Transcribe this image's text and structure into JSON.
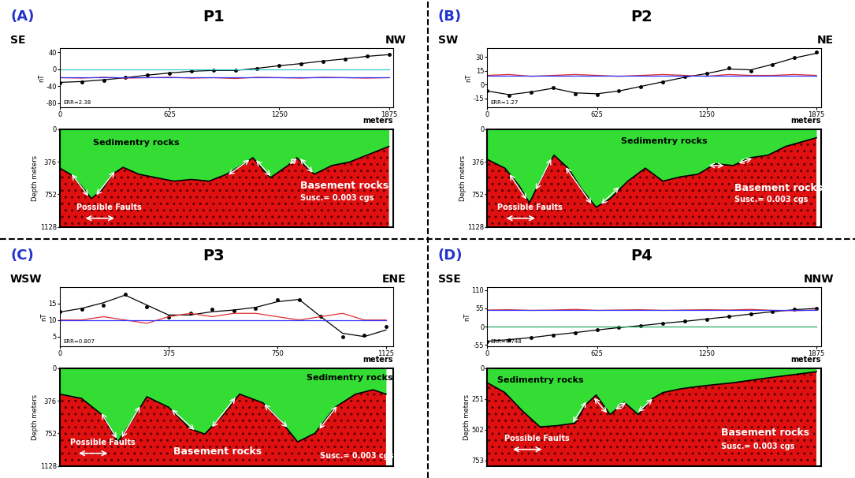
{
  "chart_data": [
    {
      "type": "line",
      "panel_label": "(A)",
      "title": "P1",
      "annotations": [
        "SE",
        "NW"
      ],
      "ylabel": "nT",
      "xlabel": "meters",
      "error_text": "ERR=2.38",
      "x": [
        0,
        125,
        250,
        375,
        500,
        625,
        750,
        875,
        1000,
        1125,
        1250,
        1375,
        1500,
        1625,
        1750,
        1875
      ],
      "xlim": [
        0,
        1900
      ],
      "xticks": [
        0,
        625,
        1250,
        1875
      ],
      "ylim": [
        -90,
        50
      ],
      "yticks": [
        -80,
        -40,
        0,
        40
      ],
      "series": [
        {
          "color": "#000000",
          "marker": "circle",
          "line_style": "none",
          "values": [
            -32,
            -30,
            -26,
            -20,
            -14,
            -9,
            -4,
            -2,
            -3,
            2,
            8,
            13,
            18,
            24,
            30,
            35
          ]
        },
        {
          "color": "#000000",
          "marker": "none",
          "line_style": "solid",
          "values": [
            -31,
            -29,
            -25,
            -20,
            -14,
            -9,
            -5,
            -3,
            -3,
            2,
            8,
            13,
            19,
            24,
            30,
            34
          ]
        },
        {
          "color": "#e03030",
          "marker": "none",
          "line_style": "solid",
          "values": [
            -20,
            -21,
            -19,
            -21,
            -20,
            -19,
            -21,
            -20,
            -22,
            -19,
            -20,
            -21,
            -19,
            -20,
            -21,
            -20
          ]
        },
        {
          "color": "#3333ff",
          "marker": "none",
          "line_style": "solid",
          "values": [
            -20,
            -20,
            -20,
            -20,
            -20,
            -20,
            -20,
            -20,
            -20,
            -20,
            -20,
            -20,
            -20,
            -20,
            -20,
            -20
          ]
        },
        {
          "color": "#33cccc",
          "marker": "none",
          "line_style": "solid",
          "values": [
            0,
            0,
            0,
            0,
            0,
            0,
            0,
            0,
            0,
            0,
            0,
            0,
            0,
            0,
            0,
            0
          ]
        }
      ],
      "section": {
        "type": "area",
        "ylabel": "Depth meters",
        "tick_labels": "y",
        "x": [
          0,
          60,
          120,
          180,
          240,
          300,
          360,
          450,
          550,
          650,
          750,
          850,
          950,
          1050,
          1100,
          1150,
          1200,
          1300,
          1350,
          1400,
          1450,
          1550,
          1650,
          1750,
          1875
        ],
        "values": [
          450,
          520,
          650,
          800,
          700,
          520,
          440,
          520,
          560,
          600,
          580,
          600,
          520,
          400,
          330,
          450,
          560,
          420,
          330,
          430,
          520,
          420,
          380,
          300,
          200
        ],
        "ylim": [
          1128,
          0
        ],
        "yticks": [
          0,
          376,
          752,
          1128
        ],
        "faults": [
          [
            60,
            500,
            170,
            790
          ],
          [
            200,
            780,
            320,
            470
          ],
          [
            950,
            540,
            1090,
            340
          ],
          [
            1110,
            340,
            1210,
            560
          ],
          [
            1300,
            420,
            1360,
            320
          ],
          [
            1360,
            320,
            1450,
            520
          ]
        ],
        "sediment_label": "Sedimentry rocks",
        "basement_label": "Basement rocks",
        "susceptibility": "Susc.= 0.003 cgs",
        "fault_label": "Possible Faults"
      }
    },
    {
      "type": "line",
      "panel_label": "(B)",
      "title": "P2",
      "annotations": [
        "SW",
        "NE"
      ],
      "ylabel": "nT",
      "xlabel": "meters",
      "error_text": "ERR=1.27",
      "x": [
        0,
        125,
        250,
        375,
        500,
        625,
        750,
        875,
        1000,
        1125,
        1250,
        1375,
        1500,
        1625,
        1750,
        1875
      ],
      "xlim": [
        0,
        1900
      ],
      "xticks": [
        0,
        625,
        1250,
        1875
      ],
      "ylim": [
        -25,
        40
      ],
      "yticks": [
        -15,
        0,
        15,
        30
      ],
      "series": [
        {
          "color": "#000000",
          "marker": "circle",
          "line_style": "none",
          "values": [
            -7,
            -12,
            -8,
            -3,
            -10,
            -11,
            -7,
            -2,
            3,
            9,
            12,
            18,
            15,
            22,
            29,
            35
          ]
        },
        {
          "color": "#000000",
          "marker": "none",
          "line_style": "solid",
          "values": [
            -7,
            -11,
            -8,
            -4,
            -9,
            -10,
            -7,
            -2,
            3,
            8,
            12,
            17,
            16,
            22,
            29,
            34
          ]
        },
        {
          "color": "#e03030",
          "marker": "none",
          "line_style": "solid",
          "values": [
            10,
            11,
            9,
            10,
            11,
            10,
            9,
            10,
            11,
            10,
            9,
            11,
            10,
            10,
            11,
            10
          ]
        },
        {
          "color": "#3333ff",
          "marker": "none",
          "line_style": "solid",
          "values": [
            10,
            10,
            10,
            10,
            10,
            10,
            10,
            10,
            10,
            10,
            10,
            10,
            10,
            10,
            10,
            10
          ]
        }
      ],
      "section": {
        "type": "area",
        "ylabel": "Depth meters",
        "tick_labels": "y",
        "x": [
          0,
          100,
          180,
          240,
          300,
          380,
          460,
          540,
          620,
          700,
          800,
          900,
          1000,
          1100,
          1200,
          1300,
          1400,
          1500,
          1600,
          1700,
          1875
        ],
        "values": [
          350,
          450,
          650,
          850,
          600,
          300,
          450,
          700,
          900,
          800,
          600,
          450,
          600,
          550,
          520,
          400,
          420,
          330,
          300,
          200,
          100
        ],
        "ylim": [
          1128,
          0
        ],
        "yticks": [
          0,
          376,
          752,
          1128
        ],
        "faults": [
          [
            120,
            500,
            230,
            830
          ],
          [
            270,
            720,
            370,
            320
          ],
          [
            440,
            420,
            600,
            880
          ],
          [
            640,
            880,
            760,
            650
          ],
          [
            1250,
            420,
            1360,
            420
          ],
          [
            1420,
            400,
            1520,
            330
          ]
        ],
        "sediment_label": "Sedimentry rocks",
        "basement_label": "Basement rocks",
        "susceptibility": "Susc.= 0.003 cgs",
        "fault_label": "Possible Faults"
      }
    },
    {
      "type": "line",
      "panel_label": "(C)",
      "title": "P3",
      "annotations": [
        "WSW",
        "ENE"
      ],
      "ylabel": "nT",
      "xlabel": "meters",
      "error_text": "ERR=0.807",
      "x": [
        0,
        75,
        150,
        225,
        300,
        375,
        450,
        525,
        600,
        675,
        750,
        825,
        900,
        975,
        1050,
        1125
      ],
      "xlim": [
        0,
        1150
      ],
      "xticks": [
        0,
        375,
        750,
        1125
      ],
      "ylim": [
        2,
        20
      ],
      "yticks": [
        5,
        10,
        15
      ],
      "series": [
        {
          "color": "#000000",
          "marker": "circle",
          "line_style": "none",
          "values": [
            12.5,
            13.2,
            14.5,
            17.8,
            14,
            10.8,
            12,
            13.2,
            12.8,
            13.5,
            16,
            16,
            11,
            5,
            5.5,
            8
          ]
        },
        {
          "color": "#000000",
          "marker": "none",
          "line_style": "solid",
          "values": [
            12.4,
            13.5,
            15.2,
            17.5,
            14.5,
            11.5,
            11.5,
            12.5,
            13,
            13.8,
            15.5,
            16.2,
            11,
            6,
            5,
            7
          ]
        },
        {
          "color": "#e03030",
          "marker": "none",
          "line_style": "solid",
          "values": [
            10,
            10,
            11,
            10,
            9,
            11,
            12,
            11,
            12,
            12,
            11,
            10,
            11,
            12,
            10,
            10
          ]
        },
        {
          "color": "#3333ff",
          "marker": "none",
          "line_style": "solid",
          "values": [
            10,
            10,
            10,
            10,
            10,
            10,
            10,
            10,
            10,
            10,
            10,
            10,
            10,
            10,
            10,
            10
          ]
        }
      ],
      "section": {
        "type": "area",
        "ylabel": "Depth meters",
        "tick_labels": "y",
        "x": [
          0,
          75,
          150,
          200,
          250,
          300,
          375,
          450,
          500,
          560,
          620,
          700,
          760,
          820,
          880,
          950,
          1020,
          1080,
          1125
        ],
        "values": [
          300,
          350,
          550,
          850,
          600,
          330,
          450,
          700,
          760,
          550,
          300,
          400,
          600,
          850,
          750,
          450,
          300,
          250,
          300
        ],
        "ylim": [
          1128,
          0
        ],
        "yticks": [
          0,
          376,
          752,
          1128
        ],
        "faults": [
          [
            140,
            500,
            200,
            830
          ],
          [
            210,
            820,
            280,
            420
          ],
          [
            380,
            460,
            470,
            730
          ],
          [
            520,
            700,
            610,
            320
          ],
          [
            700,
            400,
            790,
            700
          ],
          [
            890,
            720,
            960,
            420
          ]
        ],
        "sediment_label": "Sedimentry rocks",
        "basement_label": "Basement rocks",
        "susceptibility": "Susc.= 0.003 cgs",
        "fault_label": "Possible Faults"
      }
    },
    {
      "type": "line",
      "panel_label": "(D)",
      "title": "P4",
      "annotations": [
        "SSE",
        "NNW"
      ],
      "ylabel": "nT",
      "xlabel": "meters",
      "error_text": "ERR=4.748",
      "x": [
        0,
        125,
        250,
        375,
        500,
        625,
        750,
        875,
        1000,
        1125,
        1250,
        1375,
        1500,
        1625,
        1750,
        1875
      ],
      "xlim": [
        0,
        1900
      ],
      "xticks": [
        0,
        625,
        1250,
        1875
      ],
      "ylim": [
        -60,
        120
      ],
      "yticks": [
        -55,
        0,
        55,
        110
      ],
      "series": [
        {
          "color": "#000000",
          "marker": "circle",
          "line_style": "none",
          "values": [
            -45,
            -40,
            -33,
            -25,
            -18,
            -10,
            -3,
            3,
            10,
            16,
            22,
            30,
            38,
            45,
            52,
            56
          ]
        },
        {
          "color": "#000000",
          "marker": "none",
          "line_style": "solid",
          "values": [
            -44,
            -39,
            -33,
            -25,
            -18,
            -10,
            -3,
            3,
            10,
            16,
            23,
            30,
            38,
            45,
            51,
            55
          ]
        },
        {
          "color": "#e03030",
          "marker": "none",
          "line_style": "solid",
          "values": [
            50,
            51,
            49,
            50,
            52,
            49,
            50,
            51,
            49,
            50,
            51,
            50,
            52,
            49,
            48,
            50
          ]
        },
        {
          "color": "#3333ff",
          "marker": "none",
          "line_style": "solid",
          "values": [
            50,
            50,
            50,
            50,
            50,
            50,
            50,
            50,
            50,
            50,
            50,
            50,
            50,
            50,
            50,
            50
          ]
        },
        {
          "color": "#22aa66",
          "marker": "none",
          "line_style": "solid",
          "values": [
            0,
            0,
            0,
            0,
            0,
            0,
            0,
            0,
            0,
            0,
            0,
            0,
            0,
            0,
            0,
            0
          ]
        }
      ],
      "section": {
        "type": "area",
        "ylabel": "Depth meters",
        "tick_labels": "y",
        "x": [
          0,
          100,
          200,
          300,
          400,
          500,
          560,
          620,
          700,
          780,
          860,
          940,
          1000,
          1100,
          1200,
          1400,
          1600,
          1875
        ],
        "values": [
          120,
          200,
          350,
          480,
          470,
          450,
          300,
          220,
          380,
          280,
          380,
          250,
          200,
          170,
          150,
          120,
          80,
          30
        ],
        "ylim": [
          800,
          0
        ],
        "yticks": [
          0,
          251,
          502,
          753
        ],
        "faults": [
          [
            480,
            460,
            570,
            260
          ],
          [
            600,
            230,
            690,
            380
          ],
          [
            720,
            350,
            800,
            270
          ],
          [
            850,
            370,
            950,
            240
          ]
        ],
        "sediment_label": "Sedimentry rocks",
        "basement_label": "Basement rocks",
        "susceptibility": "Susc.= 0.003 cgs",
        "fault_label": "Possible Faults"
      }
    }
  ]
}
